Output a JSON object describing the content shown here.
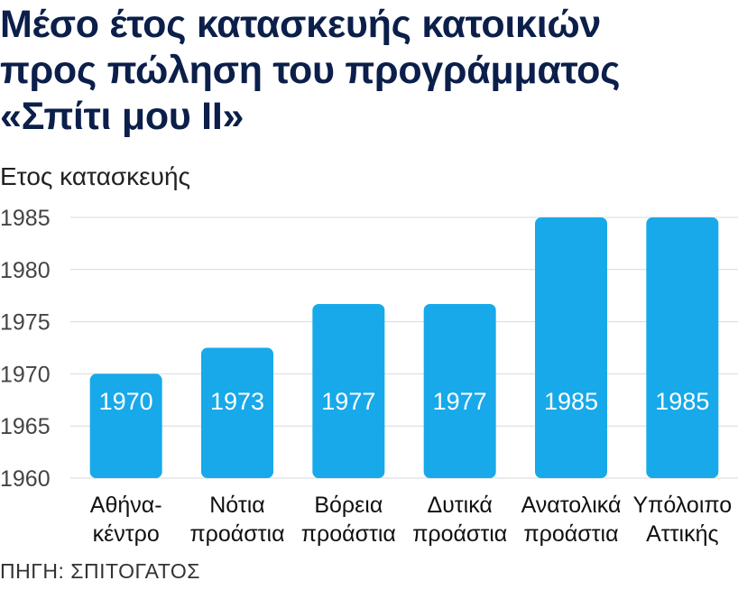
{
  "title_lines": [
    "Μέσο έτος κατασκευής κατοικιών",
    "προς πώληση του προγράμματος",
    "«Σπίτι μου ΙΙ»"
  ],
  "source": "ΠΗΓΗ: ΣΠΙΤΟΓΑΤΟΣ",
  "colors": {
    "bar": "#17a9ea",
    "grid": "#d9d9d9",
    "title": "#0b1f4a"
  },
  "chart_data": {
    "type": "bar",
    "title": "Μέσο έτος κατασκευής κατοικιών προς πώληση του προγράμματος «Σπίτι μου ΙΙ»",
    "ylabel": "Ετος κατασκευής",
    "xlabel": "",
    "ylim": [
      1960,
      1985
    ],
    "yticks": [
      "1960",
      "1965",
      "1970",
      "1975",
      "1980",
      "1985"
    ],
    "grid": true,
    "categories": [
      [
        "Αθήνα-",
        "κέντρο"
      ],
      [
        "Νότια",
        "προάστια"
      ],
      [
        "Βόρεια",
        "προάστια"
      ],
      [
        "Δυτικά",
        "προάστια"
      ],
      [
        "Ανατολικά",
        "προάστια"
      ],
      [
        "Υπόλοιπο",
        "Αττικής"
      ]
    ],
    "values": [
      1970,
      1972.5,
      1976.7,
      1976.7,
      1985,
      1985
    ],
    "data_labels": [
      "1970",
      "1973",
      "1977",
      "1977",
      "1985",
      "1985"
    ]
  }
}
